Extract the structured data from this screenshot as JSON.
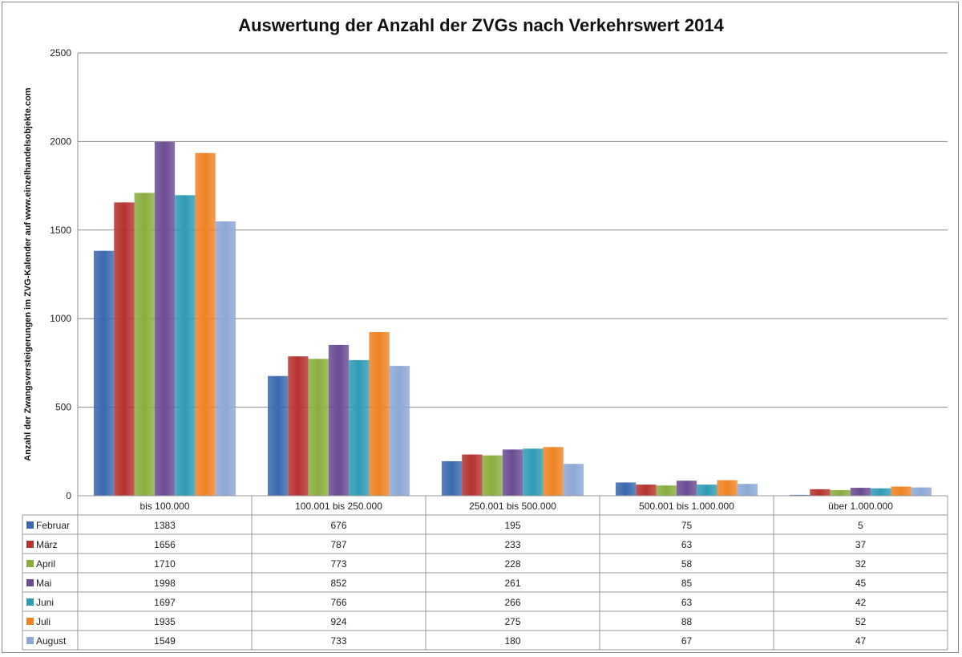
{
  "chart_data": {
    "type": "bar",
    "title": "Auswertung der Anzahl der ZVGs nach Verkehrswert 2014",
    "ylabel": "Anzahl der Zwangsversteigerungen  im ZVG-Kalender auf www.einzelhandelsobjekte.com",
    "xlabel": "",
    "ylim": [
      0,
      2500
    ],
    "yticks": [
      0,
      500,
      1000,
      1500,
      2000,
      2500
    ],
    "grid": true,
    "legend": "data-table",
    "categories": [
      "bis 100.000",
      "100.001 bis 250.000",
      "250.001 bis 500.000",
      "500.001 bis 1.000.000",
      "über 1.000.000"
    ],
    "series": [
      {
        "name": "Februar",
        "color": "#3a69ad",
        "values": [
          1383,
          676,
          195,
          75,
          5
        ]
      },
      {
        "name": "März",
        "color": "#b5332f",
        "values": [
          1656,
          787,
          233,
          63,
          37
        ]
      },
      {
        "name": "April",
        "color": "#8bad3f",
        "values": [
          1710,
          773,
          228,
          58,
          32
        ]
      },
      {
        "name": "Mai",
        "color": "#6a4c93",
        "values": [
          1998,
          852,
          261,
          85,
          45
        ]
      },
      {
        "name": "Juni",
        "color": "#2f9bb5",
        "values": [
          1697,
          766,
          266,
          63,
          42
        ]
      },
      {
        "name": "Juli",
        "color": "#ef8324",
        "values": [
          1935,
          924,
          275,
          88,
          52
        ]
      },
      {
        "name": "August",
        "color": "#8da8d6",
        "values": [
          1549,
          733,
          180,
          67,
          47
        ]
      }
    ]
  }
}
